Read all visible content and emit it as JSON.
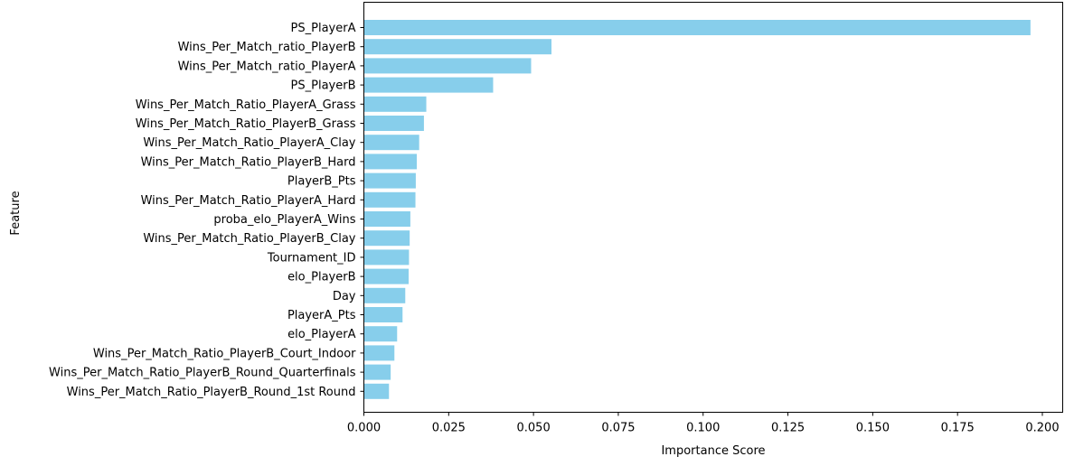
{
  "chart_data": {
    "type": "bar",
    "orientation": "horizontal",
    "title": "",
    "xlabel": "Importance Score",
    "ylabel": "Feature",
    "xlim": [
      0,
      0.206
    ],
    "x_ticks": [
      "0.000",
      "0.025",
      "0.050",
      "0.075",
      "0.100",
      "0.125",
      "0.150",
      "0.175",
      "0.200"
    ],
    "bar_color": "#87ceeb",
    "grid": false,
    "legend": false,
    "categories": [
      "PS_PlayerA",
      "Wins_Per_Match_ratio_PlayerB",
      "Wins_Per_Match_ratio_PlayerA",
      "PS_PlayerB",
      "Wins_Per_Match_Ratio_PlayerA_Grass",
      "Wins_Per_Match_Ratio_PlayerB_Grass",
      "Wins_Per_Match_Ratio_PlayerA_Clay",
      "Wins_Per_Match_Ratio_PlayerB_Hard",
      "PlayerB_Pts",
      "Wins_Per_Match_Ratio_PlayerA_Hard",
      "proba_elo_PlayerA_Wins",
      "Wins_Per_Match_Ratio_PlayerB_Clay",
      "Tournament_ID",
      "elo_PlayerB",
      "Day",
      "PlayerA_Pts",
      "elo_PlayerA",
      "Wins_Per_Match_Ratio_PlayerB_Court_Indoor",
      "Wins_Per_Match_Ratio_PlayerB_Round_Quarterfinals",
      "Wins_Per_Match_Ratio_PlayerB_Round_1st Round"
    ],
    "values": [
      0.1965,
      0.0553,
      0.0493,
      0.0381,
      0.0184,
      0.0177,
      0.0163,
      0.0156,
      0.0153,
      0.0152,
      0.0137,
      0.0135,
      0.0133,
      0.0132,
      0.0122,
      0.0114,
      0.0098,
      0.009,
      0.0079,
      0.0074
    ]
  }
}
